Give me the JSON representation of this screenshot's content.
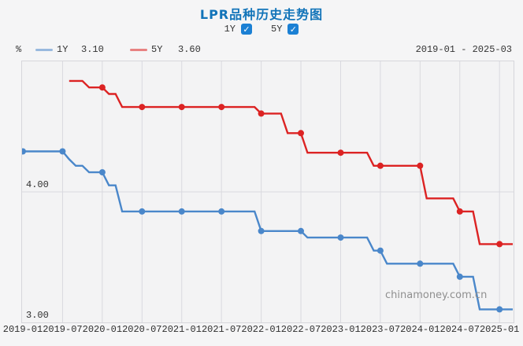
{
  "title": "LPR品种历史走势图",
  "title_color": "#1274b9",
  "controls": {
    "checkbox_color": "#1b80d4",
    "check_glyph": "✓",
    "toggles": [
      {
        "label": "1Y",
        "checked": true
      },
      {
        "label": "5Y",
        "checked": true
      }
    ]
  },
  "legend": {
    "unit": "%",
    "items": [
      {
        "name": "1Y",
        "value": "3.10"
      },
      {
        "name": "5Y",
        "value": "3.60"
      }
    ],
    "date_range": "2019-01 - 2025-03"
  },
  "watermark": "chinamoney.com.cn",
  "chart_data": {
    "type": "line",
    "title": "LPR品种历史走势图",
    "ylabel": "%",
    "ylim": [
      3.0,
      5.0
    ],
    "x_range": [
      "2019-01",
      "2025-03"
    ],
    "x_frequency": "monthly",
    "x_tick_labels": [
      "2019-01",
      "2019-07",
      "2020-01",
      "2020-07",
      "2021-01",
      "2021-07",
      "2022-01",
      "2022-07",
      "2023-01",
      "2023-07",
      "2024-01",
      "2024-07",
      "2025-01"
    ],
    "y_tick_labels": [
      {
        "text": "4.00",
        "value": 4.0
      },
      {
        "text": "3.00",
        "value": 3.0
      }
    ],
    "grid": {
      "vertical_every_months": 6,
      "horizontal_at": [
        4.0
      ]
    },
    "marker_every_months": 6,
    "gridline_color": "#d9d9df",
    "legend_position": "top-left",
    "series": [
      {
        "name": "1Y",
        "color": "#4a87ca",
        "latest": "3.10",
        "values": [
          4.31,
          4.31,
          4.31,
          4.31,
          4.31,
          4.31,
          4.31,
          4.25,
          4.2,
          4.2,
          4.15,
          4.15,
          4.15,
          4.05,
          4.05,
          3.85,
          3.85,
          3.85,
          3.85,
          3.85,
          3.85,
          3.85,
          3.85,
          3.85,
          3.85,
          3.85,
          3.85,
          3.85,
          3.85,
          3.85,
          3.85,
          3.85,
          3.85,
          3.85,
          3.85,
          3.85,
          3.7,
          3.7,
          3.7,
          3.7,
          3.7,
          3.7,
          3.7,
          3.65,
          3.65,
          3.65,
          3.65,
          3.65,
          3.65,
          3.65,
          3.65,
          3.65,
          3.65,
          3.55,
          3.55,
          3.45,
          3.45,
          3.45,
          3.45,
          3.45,
          3.45,
          3.45,
          3.45,
          3.45,
          3.45,
          3.45,
          3.35,
          3.35,
          3.35,
          3.1,
          3.1,
          3.1,
          3.1,
          3.1,
          3.1
        ]
      },
      {
        "name": "5Y",
        "color": "#dc2323",
        "latest": "3.60",
        "values": [
          null,
          null,
          null,
          null,
          null,
          null,
          null,
          4.85,
          4.85,
          4.85,
          4.8,
          4.8,
          4.8,
          4.75,
          4.75,
          4.65,
          4.65,
          4.65,
          4.65,
          4.65,
          4.65,
          4.65,
          4.65,
          4.65,
          4.65,
          4.65,
          4.65,
          4.65,
          4.65,
          4.65,
          4.65,
          4.65,
          4.65,
          4.65,
          4.65,
          4.65,
          4.6,
          4.6,
          4.6,
          4.6,
          4.45,
          4.45,
          4.45,
          4.3,
          4.3,
          4.3,
          4.3,
          4.3,
          4.3,
          4.3,
          4.3,
          4.3,
          4.3,
          4.2,
          4.2,
          4.2,
          4.2,
          4.2,
          4.2,
          4.2,
          4.2,
          3.95,
          3.95,
          3.95,
          3.95,
          3.95,
          3.85,
          3.85,
          3.85,
          3.6,
          3.6,
          3.6,
          3.6,
          3.6,
          3.6
        ]
      }
    ]
  }
}
